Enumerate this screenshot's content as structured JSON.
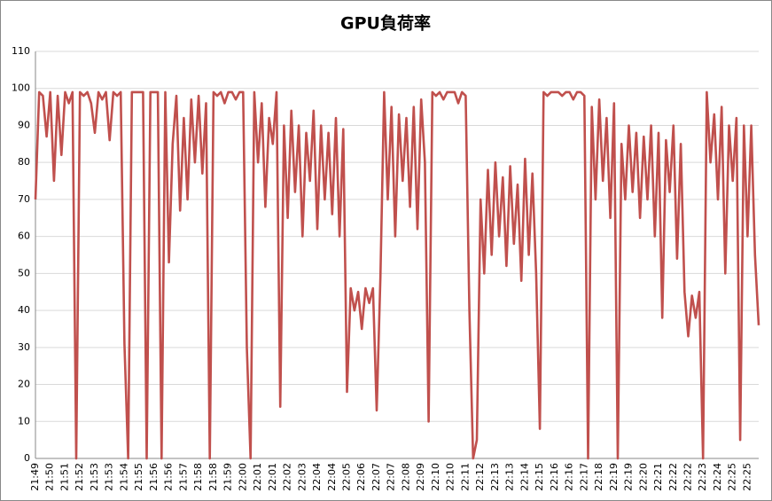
{
  "chart_data": {
    "type": "line",
    "title": "GPU負荷率",
    "categories": [
      "21:49",
      null,
      null,
      null,
      "21:50",
      null,
      null,
      null,
      "21:51",
      null,
      null,
      null,
      "21:52",
      null,
      null,
      null,
      "21:53",
      null,
      null,
      null,
      "21:53",
      null,
      null,
      null,
      "21:54",
      null,
      null,
      null,
      "21:55",
      null,
      null,
      null,
      "21:56",
      null,
      null,
      null,
      "21:56",
      null,
      null,
      null,
      "21:57",
      null,
      null,
      null,
      "21:58",
      null,
      null,
      null,
      "21:58",
      null,
      null,
      null,
      "21:59",
      null,
      null,
      null,
      "22:00",
      null,
      null,
      null,
      "22:01",
      null,
      null,
      null,
      "22:01",
      null,
      null,
      null,
      "22:02",
      null,
      null,
      null,
      "22:03",
      null,
      null,
      null,
      "22:04",
      null,
      null,
      null,
      "22:04",
      null,
      null,
      null,
      "22:05",
      null,
      null,
      null,
      "22:06",
      null,
      null,
      null,
      "22:07",
      null,
      null,
      null,
      "22:07",
      null,
      null,
      null,
      "22:08",
      null,
      null,
      null,
      "22:09",
      null,
      null,
      null,
      "22:10",
      null,
      null,
      null,
      "22:10",
      null,
      null,
      null,
      "22:11",
      null,
      null,
      null,
      "22:12",
      null,
      null,
      null,
      "22:13",
      null,
      null,
      null,
      "22:13",
      null,
      null,
      null,
      "22:14",
      null,
      null,
      null,
      "22:15",
      null,
      null,
      null,
      "22:16",
      null,
      null,
      null,
      "22:16",
      null,
      null,
      null,
      "22:17",
      null,
      null,
      null,
      "22:18",
      null,
      null,
      null,
      "22:19",
      null,
      null,
      null,
      "22:19",
      null,
      null,
      null,
      "22:20",
      null,
      null,
      null,
      "22:21",
      null,
      null,
      null,
      "22:22",
      null,
      null,
      null,
      "22:22",
      null,
      null,
      null,
      "22:23",
      null,
      null,
      null,
      "22:24",
      null,
      null,
      null,
      "22:25",
      null,
      null,
      null,
      "22:25",
      null,
      null,
      null
    ],
    "series": [
      {
        "color": "#c0504d",
        "values": [
          70,
          99,
          98,
          87,
          99,
          75,
          98,
          82,
          99,
          96,
          99,
          0,
          99,
          98,
          99,
          96,
          88,
          99,
          97,
          99,
          86,
          99,
          98,
          99,
          31,
          0,
          99,
          99,
          99,
          99,
          0,
          99,
          99,
          99,
          0,
          99,
          53,
          85,
          98,
          67,
          92,
          70,
          97,
          80,
          98,
          77,
          96,
          0,
          99,
          98,
          99,
          96,
          99,
          99,
          97,
          99,
          99,
          30,
          0,
          99,
          80,
          96,
          68,
          92,
          85,
          99,
          14,
          90,
          65,
          94,
          72,
          90,
          60,
          88,
          75,
          94,
          62,
          90,
          70,
          88,
          66,
          92,
          60,
          89,
          18,
          46,
          40,
          45,
          35,
          46,
          42,
          46,
          13,
          49,
          99,
          70,
          95,
          60,
          93,
          75,
          92,
          68,
          95,
          62,
          97,
          80,
          10,
          99,
          98,
          99,
          97,
          99,
          99,
          99,
          96,
          99,
          98,
          40,
          0,
          5,
          70,
          50,
          78,
          55,
          80,
          60,
          76,
          52,
          79,
          58,
          74,
          48,
          81,
          55,
          77,
          50,
          8,
          99,
          98,
          99,
          99,
          99,
          98,
          99,
          99,
          97,
          99,
          99,
          98,
          0,
          95,
          70,
          97,
          75,
          92,
          65,
          96,
          0,
          85,
          70,
          90,
          72,
          88,
          65,
          87,
          70,
          90,
          60,
          88,
          38,
          86,
          72,
          90,
          54,
          85,
          45,
          33,
          44,
          38,
          45,
          0,
          99,
          80,
          93,
          70,
          95,
          50,
          90,
          75,
          92,
          5,
          90,
          60,
          90,
          55,
          36
        ]
      }
    ],
    "ylim": [
      0,
      110
    ],
    "yticks": [
      0,
      10,
      20,
      30,
      40,
      50,
      60,
      70,
      80,
      90,
      100,
      110
    ],
    "grid": true
  }
}
